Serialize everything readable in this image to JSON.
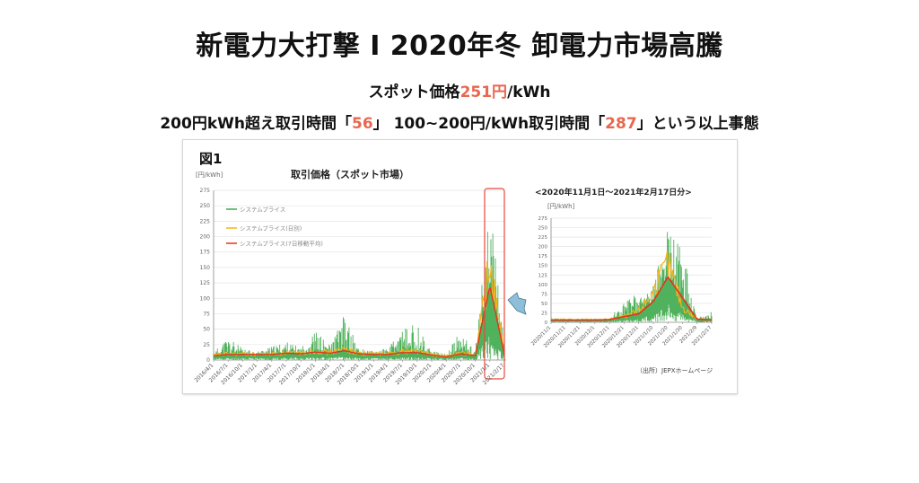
{
  "header": {
    "title": "新電力大打撃 I 2020年冬 卸電力市場高騰",
    "subtitle1": {
      "prefix": "スポット価格",
      "highlight": "251円",
      "suffix": "/kWh"
    },
    "subtitle2": {
      "part1": "200円kWh超え取引時間「",
      "value1": "56",
      "part2": "」 100~200円/kWh取引時間「",
      "value2": "287",
      "part3": "」という以上事態"
    }
  },
  "figure": {
    "label": "図1",
    "source": "（出所）JEPXホームページ"
  },
  "colors": {
    "highlight": "#e8674f",
    "system_price": "#3daa4a",
    "daily": "#f2b21c",
    "moving_avg": "#e8321e",
    "highlight_box": "#e8483a",
    "arrow": "#8fbfd8"
  },
  "chart_data": [
    {
      "type": "area",
      "title": "取引価格（スポット市場）",
      "ylabel": "[円/kWh]",
      "xlabel": "",
      "ylim": [
        0,
        275
      ],
      "yticks": [
        0,
        25,
        50,
        75,
        100,
        125,
        150,
        175,
        200,
        225,
        250,
        275
      ],
      "grid": true,
      "legend_position": "upper-left-inside",
      "categories": [
        "2016/4/1",
        "2016/7/1",
        "2016/10/1",
        "2017/1/1",
        "2017/4/1",
        "2017/7/1",
        "2017/10/1",
        "2018/1/1",
        "2018/4/1",
        "2018/7/1",
        "2018/10/1",
        "2019/1/1",
        "2019/4/1",
        "2019/7/1",
        "2019/10/1",
        "2020/1/1",
        "2020/4/1",
        "2020/7/1",
        "2020/10/1",
        "2021/1/1",
        "2021/2/17"
      ],
      "series": [
        {
          "name": "システムプライス",
          "values": [
            12,
            40,
            18,
            14,
            22,
            30,
            20,
            48,
            25,
            75,
            18,
            15,
            20,
            50,
            60,
            15,
            10,
            48,
            15,
            251,
            28
          ]
        },
        {
          "name": "システムプライス(日別)",
          "values": [
            8,
            10,
            10,
            9,
            10,
            12,
            11,
            15,
            12,
            18,
            11,
            10,
            10,
            14,
            15,
            9,
            6,
            12,
            8,
            155,
            10
          ]
        },
        {
          "name": "システムプライス(7日移動平均)",
          "values": [
            7,
            9,
            9,
            9,
            9,
            11,
            10,
            13,
            11,
            15,
            10,
            9,
            9,
            12,
            12,
            8,
            5,
            10,
            7,
            120,
            9
          ]
        }
      ],
      "annotations": [
        "red box highlighting 2020/12–2021/2 spike"
      ]
    },
    {
      "type": "area",
      "title": "<2020年11月1日～2021年2月17日分>",
      "ylabel": "[円/kWh]",
      "xlabel": "",
      "ylim": [
        0,
        275
      ],
      "yticks": [
        0,
        25,
        50,
        75,
        100,
        125,
        150,
        175,
        200,
        225,
        250,
        275
      ],
      "grid": true,
      "categories": [
        "2020/11/1",
        "2020/11/11",
        "2020/11/21",
        "2020/12/1",
        "2020/12/11",
        "2020/12/21",
        "2020/12/31",
        "2021/1/10",
        "2021/1/20",
        "2021/1/30",
        "2021/2/9",
        "2021/2/17"
      ],
      "series": [
        {
          "name": "システムプライス",
          "values": [
            12,
            10,
            10,
            10,
            10,
            60,
            80,
            100,
            251,
            200,
            12,
            28
          ]
        },
        {
          "name": "システムプライス(日別)",
          "values": [
            7,
            7,
            7,
            7,
            8,
            15,
            30,
            80,
            155,
            40,
            8,
            8
          ]
        },
        {
          "name": "システムプライス(7日移動平均)",
          "values": [
            6,
            6,
            6,
            6,
            7,
            15,
            22,
            55,
            120,
            65,
            8,
            7
          ]
        }
      ]
    }
  ]
}
